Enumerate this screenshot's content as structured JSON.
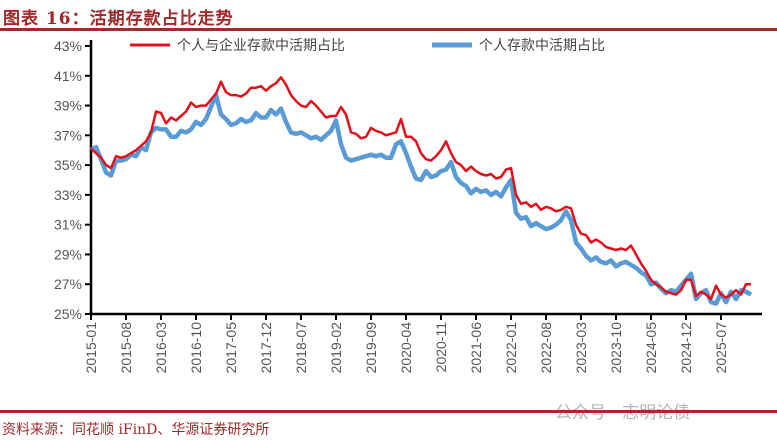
{
  "title": "图表 16：活期存款占比走势",
  "source": "资料来源：同花顺 iFinD、华源证券研究所",
  "watermark": "公众号 · 志明论债",
  "chart_data": {
    "type": "line",
    "title": "",
    "xlabel": "",
    "ylabel": "",
    "x_start": "2015-01",
    "x_frequency": "monthly",
    "x_tick_labels": [
      "2015-01",
      "2015-08",
      "2016-03",
      "2016-10",
      "2017-05",
      "2017-12",
      "2018-07",
      "2019-02",
      "2019-09",
      "2020-04",
      "2020-11",
      "2021-06",
      "2022-01",
      "2022-08",
      "2023-03",
      "2023-10",
      "2024-05",
      "2024-12",
      "2025-07"
    ],
    "y_tick_labels": [
      "25%",
      "27%",
      "29%",
      "31%",
      "33%",
      "35%",
      "37%",
      "39%",
      "41%",
      "43%"
    ],
    "ylim": [
      25,
      43
    ],
    "y_unit": "%",
    "grid": false,
    "legend": "top",
    "series": [
      {
        "name": "个人与企业存款中活期占比",
        "color": "#e3101c",
        "values": [
          36.1,
          35.8,
          35.5,
          35.0,
          34.8,
          35.6,
          35.5,
          35.6,
          35.8,
          36.0,
          36.3,
          36.6,
          37.2,
          38.6,
          38.5,
          37.8,
          38.2,
          38.0,
          38.3,
          38.6,
          39.2,
          38.9,
          39.0,
          39.0,
          39.4,
          39.8,
          40.6,
          39.9,
          39.7,
          39.7,
          39.6,
          39.8,
          40.2,
          40.2,
          40.3,
          40.0,
          40.3,
          40.5,
          40.9,
          40.4,
          39.7,
          39.3,
          39.0,
          38.9,
          39.3,
          39.0,
          38.6,
          38.2,
          38.3,
          38.3,
          38.9,
          38.4,
          37.2,
          37.1,
          36.8,
          36.9,
          37.5,
          37.3,
          37.2,
          37.0,
          37.1,
          37.2,
          38.1,
          36.9,
          36.9,
          36.6,
          35.8,
          35.4,
          35.3,
          35.6,
          36.0,
          36.6,
          35.8,
          35.2,
          35.0,
          34.6,
          34.9,
          34.6,
          34.4,
          34.3,
          34.4,
          34.1,
          34.2,
          34.7,
          34.8,
          33.0,
          32.4,
          32.5,
          32.2,
          32.4,
          32.0,
          32.2,
          32.1,
          31.9,
          32.0,
          32.2,
          32.1,
          31.0,
          30.4,
          30.3,
          29.8,
          30.0,
          29.8,
          29.5,
          29.4,
          29.3,
          29.4,
          29.3,
          29.6,
          29.0,
          28.4,
          27.9,
          27.3,
          27.0,
          26.8,
          26.5,
          26.4,
          26.3,
          26.6,
          27.3,
          27.3,
          26.2,
          26.5,
          26.3,
          26.0,
          26.9,
          26.3,
          26.1,
          26.3,
          26.6,
          26.3,
          27.0,
          27.0
        ]
      },
      {
        "name": "个人存款中活期占比",
        "color": "#5b9bd5",
        "values": [
          36.0,
          36.2,
          35.4,
          34.5,
          34.3,
          35.3,
          35.3,
          35.4,
          35.7,
          35.6,
          36.2,
          36.0,
          37.2,
          37.5,
          37.4,
          37.4,
          36.9,
          36.9,
          37.3,
          37.2,
          37.4,
          37.9,
          37.7,
          38.1,
          38.9,
          39.7,
          38.4,
          38.1,
          37.7,
          37.8,
          38.1,
          37.9,
          38.0,
          38.5,
          38.2,
          38.2,
          38.7,
          38.4,
          38.8,
          37.9,
          37.2,
          37.1,
          37.2,
          37.0,
          36.8,
          36.9,
          36.7,
          37.0,
          37.3,
          38.0,
          36.4,
          35.5,
          35.3,
          35.4,
          35.5,
          35.6,
          35.7,
          35.6,
          35.7,
          35.5,
          35.5,
          36.4,
          36.6,
          35.8,
          34.9,
          34.1,
          34.0,
          34.6,
          34.2,
          34.3,
          34.6,
          34.7,
          35.2,
          34.2,
          33.8,
          33.6,
          33.1,
          33.4,
          33.2,
          33.3,
          33.0,
          33.2,
          32.9,
          33.5,
          34.0,
          31.8,
          31.4,
          31.5,
          30.9,
          31.1,
          30.9,
          30.7,
          30.8,
          31.0,
          31.3,
          31.9,
          31.3,
          29.8,
          29.4,
          28.9,
          28.6,
          28.8,
          28.5,
          28.4,
          28.6,
          28.2,
          28.4,
          28.5,
          28.3,
          28.1,
          27.8,
          27.6,
          27.0,
          27.1,
          26.7,
          26.4,
          26.6,
          26.5,
          26.9,
          27.3,
          27.7,
          26.0,
          26.4,
          26.6,
          25.8,
          25.7,
          26.4,
          25.8,
          26.5,
          26.0,
          26.6,
          26.5,
          26.3
        ]
      }
    ]
  }
}
